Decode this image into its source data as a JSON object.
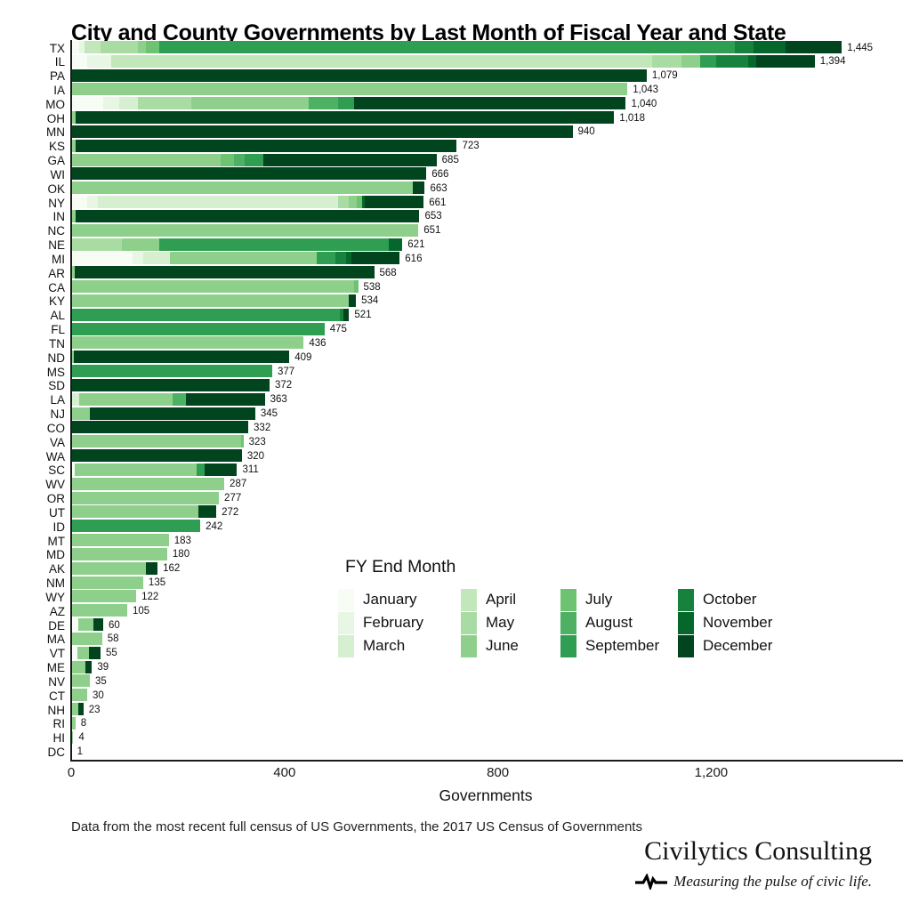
{
  "title": "City and County Governments by Last Month of Fiscal Year and State",
  "caption": "Data from the most recent full census of US Governments, the 2017 US Census of Governments",
  "branding": {
    "name": "Civilytics Consulting",
    "tagline": "Measuring the pulse of civic life.",
    "pulse_icon": "ekg-pulse-line",
    "color": "#131313"
  },
  "legend": {
    "title": "FY End Month",
    "columns": [
      [
        "January",
        "February",
        "March"
      ],
      [
        "April",
        "May",
        "June"
      ],
      [
        "July",
        "August",
        "September"
      ],
      [
        "October",
        "November",
        "December"
      ]
    ]
  },
  "chart_data": {
    "type": "bar",
    "orientation": "horizontal",
    "stacked": true,
    "title": "City and County Governments by Last Month of Fiscal Year and State",
    "xlabel": "Governments",
    "ylabel": "",
    "xlim": [
      0,
      1560
    ],
    "grid": false,
    "legend_position": "inside-bottom-center",
    "xticks": [
      {
        "value": 0,
        "label": "0"
      },
      {
        "value": 400,
        "label": "400"
      },
      {
        "value": 800,
        "label": "800"
      },
      {
        "value": 1200,
        "label": "1,200"
      }
    ],
    "months": [
      {
        "name": "January",
        "color": "#f7fcf5"
      },
      {
        "name": "February",
        "color": "#e8f6e4"
      },
      {
        "name": "March",
        "color": "#d6efd0"
      },
      {
        "name": "April",
        "color": "#c2e7bb"
      },
      {
        "name": "May",
        "color": "#a9dca3"
      },
      {
        "name": "June",
        "color": "#8ed08b"
      },
      {
        "name": "July",
        "color": "#6dc372"
      },
      {
        "name": "August",
        "color": "#4cb163"
      },
      {
        "name": "September",
        "color": "#2f9e52"
      },
      {
        "name": "October",
        "color": "#17823d"
      },
      {
        "name": "November",
        "color": "#05672c"
      },
      {
        "name": "December",
        "color": "#00451d"
      }
    ],
    "rows": [
      {
        "state": "TX",
        "total": 1445,
        "label": "1,445",
        "segments": [
          [
            "January",
            15
          ],
          [
            "February",
            10
          ],
          [
            "April",
            30
          ],
          [
            "May",
            70
          ],
          [
            "June",
            15
          ],
          [
            "July",
            25
          ],
          [
            "September",
            1080
          ],
          [
            "October",
            35
          ],
          [
            "November",
            60
          ],
          [
            "December",
            105
          ]
        ]
      },
      {
        "state": "IL",
        "total": 1394,
        "label": "1,394",
        "segments": [
          [
            "January",
            30
          ],
          [
            "February",
            45
          ],
          [
            "April",
            1015
          ],
          [
            "May",
            55
          ],
          [
            "June",
            35
          ],
          [
            "September",
            30
          ],
          [
            "October",
            60
          ],
          [
            "November",
            14
          ],
          [
            "December",
            110
          ]
        ]
      },
      {
        "state": "PA",
        "total": 1079,
        "label": "1,079",
        "segments": [
          [
            "December",
            1079
          ]
        ]
      },
      {
        "state": "IA",
        "total": 1043,
        "label": "1,043",
        "segments": [
          [
            "June",
            1043
          ]
        ]
      },
      {
        "state": "MO",
        "total": 1040,
        "label": "1,040",
        "segments": [
          [
            "January",
            60
          ],
          [
            "February",
            30
          ],
          [
            "March",
            35
          ],
          [
            "May",
            100
          ],
          [
            "June",
            220
          ],
          [
            "August",
            55
          ],
          [
            "September",
            30
          ],
          [
            "December",
            510
          ]
        ]
      },
      {
        "state": "OH",
        "total": 1018,
        "label": "1,018",
        "segments": [
          [
            "June",
            8
          ],
          [
            "December",
            1010
          ]
        ]
      },
      {
        "state": "MN",
        "total": 940,
        "label": "940",
        "segments": [
          [
            "December",
            940
          ]
        ]
      },
      {
        "state": "KS",
        "total": 723,
        "label": "723",
        "segments": [
          [
            "June",
            8
          ],
          [
            "December",
            715
          ]
        ]
      },
      {
        "state": "GA",
        "total": 685,
        "label": "685",
        "segments": [
          [
            "June",
            280
          ],
          [
            "July",
            25
          ],
          [
            "August",
            20
          ],
          [
            "September",
            35
          ],
          [
            "December",
            325
          ]
        ]
      },
      {
        "state": "WI",
        "total": 666,
        "label": "666",
        "segments": [
          [
            "December",
            666
          ]
        ]
      },
      {
        "state": "OK",
        "total": 663,
        "label": "663",
        "segments": [
          [
            "June",
            640
          ],
          [
            "December",
            23
          ]
        ]
      },
      {
        "state": "NY",
        "total": 661,
        "label": "661",
        "segments": [
          [
            "January",
            30
          ],
          [
            "February",
            20
          ],
          [
            "March",
            450
          ],
          [
            "May",
            20
          ],
          [
            "June",
            15
          ],
          [
            "July",
            10
          ],
          [
            "November",
            6
          ],
          [
            "December",
            110
          ]
        ]
      },
      {
        "state": "IN",
        "total": 653,
        "label": "653",
        "segments": [
          [
            "June",
            8
          ],
          [
            "December",
            645
          ]
        ]
      },
      {
        "state": "NC",
        "total": 651,
        "label": "651",
        "segments": [
          [
            "June",
            651
          ]
        ]
      },
      {
        "state": "NE",
        "total": 621,
        "label": "621",
        "segments": [
          [
            "May",
            95
          ],
          [
            "June",
            70
          ],
          [
            "September",
            430
          ],
          [
            "November",
            26
          ]
        ]
      },
      {
        "state": "MI",
        "total": 616,
        "label": "616",
        "segments": [
          [
            "January",
            115
          ],
          [
            "February",
            20
          ],
          [
            "March",
            50
          ],
          [
            "June",
            275
          ],
          [
            "September",
            35
          ],
          [
            "October",
            20
          ],
          [
            "November",
            10
          ],
          [
            "December",
            91
          ]
        ]
      },
      {
        "state": "AR",
        "total": 568,
        "label": "568",
        "segments": [
          [
            "June",
            6
          ],
          [
            "December",
            562
          ]
        ]
      },
      {
        "state": "CA",
        "total": 538,
        "label": "538",
        "segments": [
          [
            "June",
            530
          ],
          [
            "July",
            8
          ]
        ]
      },
      {
        "state": "KY",
        "total": 534,
        "label": "534",
        "segments": [
          [
            "June",
            520
          ],
          [
            "December",
            14
          ]
        ]
      },
      {
        "state": "AL",
        "total": 521,
        "label": "521",
        "segments": [
          [
            "September",
            503
          ],
          [
            "October",
            8
          ],
          [
            "December",
            10
          ]
        ]
      },
      {
        "state": "FL",
        "total": 475,
        "label": "475",
        "segments": [
          [
            "September",
            475
          ]
        ]
      },
      {
        "state": "TN",
        "total": 436,
        "label": "436",
        "segments": [
          [
            "June",
            436
          ]
        ]
      },
      {
        "state": "ND",
        "total": 409,
        "label": "409",
        "segments": [
          [
            "June",
            5
          ],
          [
            "December",
            404
          ]
        ]
      },
      {
        "state": "MS",
        "total": 377,
        "label": "377",
        "segments": [
          [
            "September",
            377
          ]
        ]
      },
      {
        "state": "SD",
        "total": 372,
        "label": "372",
        "segments": [
          [
            "December",
            372
          ]
        ]
      },
      {
        "state": "LA",
        "total": 363,
        "label": "363",
        "segments": [
          [
            "March",
            15
          ],
          [
            "June",
            175
          ],
          [
            "August",
            25
          ],
          [
            "December",
            148
          ]
        ]
      },
      {
        "state": "NJ",
        "total": 345,
        "label": "345",
        "segments": [
          [
            "June",
            35
          ],
          [
            "December",
            310
          ]
        ]
      },
      {
        "state": "CO",
        "total": 332,
        "label": "332",
        "segments": [
          [
            "December",
            332
          ]
        ]
      },
      {
        "state": "VA",
        "total": 323,
        "label": "323",
        "segments": [
          [
            "June",
            318
          ],
          [
            "July",
            5
          ]
        ]
      },
      {
        "state": "WA",
        "total": 320,
        "label": "320",
        "segments": [
          [
            "December",
            320
          ]
        ]
      },
      {
        "state": "SC",
        "total": 311,
        "label": "311",
        "segments": [
          [
            "January",
            6
          ],
          [
            "June",
            230
          ],
          [
            "September",
            15
          ],
          [
            "December",
            60
          ]
        ]
      },
      {
        "state": "WV",
        "total": 287,
        "label": "287",
        "segments": [
          [
            "June",
            287
          ]
        ]
      },
      {
        "state": "OR",
        "total": 277,
        "label": "277",
        "segments": [
          [
            "June",
            277
          ]
        ]
      },
      {
        "state": "UT",
        "total": 272,
        "label": "272",
        "segments": [
          [
            "June",
            239
          ],
          [
            "December",
            33
          ]
        ]
      },
      {
        "state": "ID",
        "total": 242,
        "label": "242",
        "segments": [
          [
            "September",
            242
          ]
        ]
      },
      {
        "state": "MT",
        "total": 183,
        "label": "183",
        "segments": [
          [
            "June",
            183
          ]
        ]
      },
      {
        "state": "MD",
        "total": 180,
        "label": "180",
        "segments": [
          [
            "June",
            180
          ]
        ]
      },
      {
        "state": "AK",
        "total": 162,
        "label": "162",
        "segments": [
          [
            "June",
            140
          ],
          [
            "December",
            22
          ]
        ]
      },
      {
        "state": "NM",
        "total": 135,
        "label": "135",
        "segments": [
          [
            "June",
            135
          ]
        ]
      },
      {
        "state": "WY",
        "total": 122,
        "label": "122",
        "segments": [
          [
            "June",
            122
          ]
        ]
      },
      {
        "state": "AZ",
        "total": 105,
        "label": "105",
        "segments": [
          [
            "June",
            105
          ]
        ]
      },
      {
        "state": "DE",
        "total": 60,
        "label": "60",
        "segments": [
          [
            "January",
            13
          ],
          [
            "June",
            28
          ],
          [
            "December",
            19
          ]
        ]
      },
      {
        "state": "MA",
        "total": 58,
        "label": "58",
        "segments": [
          [
            "June",
            58
          ]
        ]
      },
      {
        "state": "VT",
        "total": 55,
        "label": "55",
        "segments": [
          [
            "January",
            12
          ],
          [
            "June",
            22
          ],
          [
            "December",
            21
          ]
        ]
      },
      {
        "state": "ME",
        "total": 39,
        "label": "39",
        "segments": [
          [
            "June",
            27
          ],
          [
            "December",
            12
          ]
        ]
      },
      {
        "state": "NV",
        "total": 35,
        "label": "35",
        "segments": [
          [
            "June",
            35
          ]
        ]
      },
      {
        "state": "CT",
        "total": 30,
        "label": "30",
        "segments": [
          [
            "June",
            30
          ]
        ]
      },
      {
        "state": "NH",
        "total": 23,
        "label": "23",
        "segments": [
          [
            "June",
            13
          ],
          [
            "December",
            10
          ]
        ]
      },
      {
        "state": "RI",
        "total": 8,
        "label": "8",
        "segments": [
          [
            "June",
            8
          ]
        ]
      },
      {
        "state": "HI",
        "total": 4,
        "label": "4",
        "segments": [
          [
            "June",
            4
          ]
        ]
      },
      {
        "state": "DC",
        "total": 1,
        "label": "1",
        "segments": [
          [
            "September",
            1
          ]
        ]
      }
    ]
  }
}
